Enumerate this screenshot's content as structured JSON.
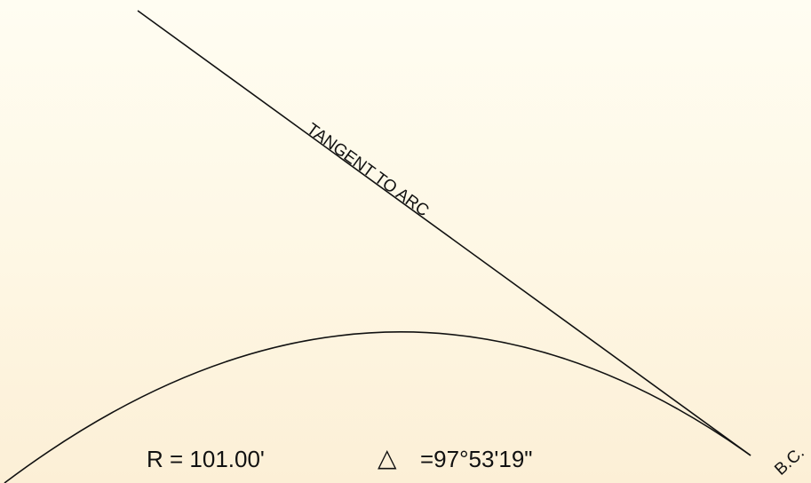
{
  "colors": {
    "background_top": "#fffdf2",
    "background_bottom": "#fcefd6",
    "line": "#111111",
    "text": "#111111"
  },
  "labels": {
    "tangent": "TANGENT TO ARC",
    "radius": "R = 101.00'",
    "delta_symbol": "△",
    "delta_value": "=97°53'19\"",
    "bc_point": "B.C."
  }
}
